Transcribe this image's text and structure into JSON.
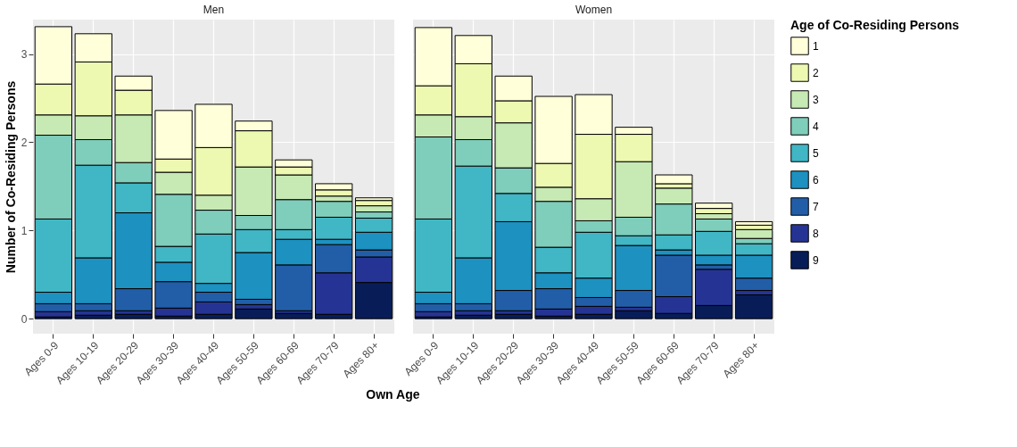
{
  "chart_data": [
    {
      "type": "bar",
      "stacked": true,
      "title": "Men",
      "legend": "right",
      "ylabel": "Number of Co-Residing Persons",
      "xlabel": "Own Age",
      "categories": [
        "Ages 0-9",
        "Ages 10-19",
        "Ages 20-29",
        "Ages 30-39",
        "Ages 40-49",
        "Ages 50-59",
        "Ages 60-69",
        "Ages 70-79",
        "Ages 80+"
      ],
      "series": [
        {
          "name": "9",
          "color": "#081d58",
          "values": [
            0.02,
            0.04,
            0.05,
            0.03,
            0.05,
            0.11,
            0.06,
            0.05,
            0.41
          ]
        },
        {
          "name": "8",
          "color": "#253494",
          "values": [
            0.06,
            0.05,
            0.04,
            0.09,
            0.14,
            0.05,
            0.03,
            0.47,
            0.29
          ]
        },
        {
          "name": "7",
          "color": "#225ea8",
          "values": [
            0.09,
            0.08,
            0.25,
            0.3,
            0.11,
            0.06,
            0.52,
            0.32,
            0.08
          ]
        },
        {
          "name": "6",
          "color": "#1d91c0",
          "values": [
            0.13,
            0.52,
            0.86,
            0.22,
            0.1,
            0.53,
            0.29,
            0.06,
            0.2
          ]
        },
        {
          "name": "5",
          "color": "#41b6c4",
          "values": [
            0.83,
            1.05,
            0.34,
            0.18,
            0.56,
            0.26,
            0.11,
            0.25,
            0.16
          ]
        },
        {
          "name": "4",
          "color": "#7fcdbb",
          "values": [
            0.95,
            0.29,
            0.23,
            0.59,
            0.27,
            0.16,
            0.34,
            0.18,
            0.07
          ]
        },
        {
          "name": "3",
          "color": "#c7e9b4",
          "values": [
            0.23,
            0.27,
            0.54,
            0.25,
            0.17,
            0.55,
            0.28,
            0.06,
            0.07
          ]
        },
        {
          "name": "2",
          "color": "#edf8b1",
          "values": [
            0.35,
            0.61,
            0.28,
            0.15,
            0.54,
            0.41,
            0.09,
            0.07,
            0.06
          ]
        },
        {
          "name": "1",
          "color": "#ffffd9",
          "values": [
            0.65,
            0.32,
            0.16,
            0.55,
            0.49,
            0.11,
            0.08,
            0.07,
            0.03
          ]
        }
      ],
      "ylim": [
        -0.17,
        3.39
      ],
      "yticks": [
        0,
        1,
        2,
        3
      ],
      "grid": true
    },
    {
      "type": "bar",
      "stacked": true,
      "title": "Women",
      "legend": "right",
      "legend_title": "Age of Co-Residing Persons",
      "tick_labels": "x",
      "categories": [
        "Ages 0-9",
        "Ages 10-19",
        "Ages 20-29",
        "Ages 30-39",
        "Ages 40-49",
        "Ages 50-59",
        "Ages 60-69",
        "Ages 70-79",
        "Ages 80+"
      ],
      "series": [
        {
          "name": "9",
          "color": "#081d58",
          "values": [
            0.02,
            0.04,
            0.05,
            0.03,
            0.05,
            0.09,
            0.06,
            0.15,
            0.27
          ]
        },
        {
          "name": "8",
          "color": "#253494",
          "values": [
            0.06,
            0.05,
            0.04,
            0.08,
            0.09,
            0.04,
            0.19,
            0.41,
            0.05
          ]
        },
        {
          "name": "7",
          "color": "#225ea8",
          "values": [
            0.09,
            0.08,
            0.23,
            0.23,
            0.1,
            0.19,
            0.47,
            0.05,
            0.14
          ]
        },
        {
          "name": "6",
          "color": "#1d91c0",
          "values": [
            0.13,
            0.52,
            0.78,
            0.18,
            0.22,
            0.51,
            0.06,
            0.11,
            0.26
          ]
        },
        {
          "name": "5",
          "color": "#41b6c4",
          "values": [
            0.83,
            1.04,
            0.32,
            0.29,
            0.52,
            0.11,
            0.17,
            0.27,
            0.13
          ]
        },
        {
          "name": "4",
          "color": "#7fcdbb",
          "values": [
            0.93,
            0.3,
            0.29,
            0.52,
            0.13,
            0.21,
            0.35,
            0.14,
            0.06
          ]
        },
        {
          "name": "3",
          "color": "#c7e9b4",
          "values": [
            0.25,
            0.26,
            0.51,
            0.16,
            0.25,
            0.63,
            0.18,
            0.06,
            0.1
          ]
        },
        {
          "name": "2",
          "color": "#edf8b1",
          "values": [
            0.33,
            0.6,
            0.25,
            0.27,
            0.73,
            0.31,
            0.05,
            0.06,
            0.05
          ]
        },
        {
          "name": "1",
          "color": "#ffffd9",
          "values": [
            0.66,
            0.32,
            0.28,
            0.76,
            0.45,
            0.08,
            0.1,
            0.06,
            0.04
          ]
        }
      ],
      "ylim": [
        -0.17,
        3.39
      ],
      "yticks": [
        0,
        1,
        2,
        3
      ],
      "grid": true
    }
  ]
}
